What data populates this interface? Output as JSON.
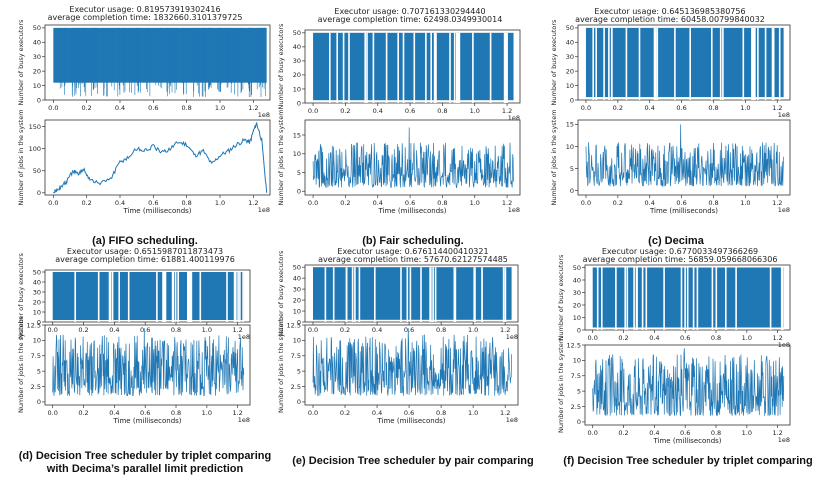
{
  "figure_title": "Scheduler comparison: executor usage and number of jobs in the system",
  "colors": {
    "series": "#1f77b4",
    "axis": "#333333"
  },
  "chart_data": [
    {
      "id": "a",
      "type": "line",
      "title_line1": "Executor usage: 0.819573919302416",
      "title_line2": "average completion time: 1832660.3101379725",
      "caption": "(a) FIFO scheduling.",
      "top": {
        "ylabel": "Number of busy executors",
        "ylim": [
          0,
          52
        ],
        "yticks": [
          0,
          10,
          20,
          30,
          40,
          50
        ],
        "pattern": "fifo"
      },
      "bottom": {
        "ylabel": "Number of jobs in the system",
        "ylim": [
          -5,
          165
        ],
        "yticks": [
          0,
          50,
          100,
          150
        ],
        "pattern": "fifo",
        "x": [
          0,
          0.02,
          0.05,
          0.08,
          0.12,
          0.15,
          0.18,
          0.22,
          0.28,
          0.35,
          0.4,
          0.45,
          0.5,
          0.55,
          0.6,
          0.65,
          0.7,
          0.75,
          0.8,
          0.85,
          0.9,
          0.95,
          1.0,
          1.05,
          1.1,
          1.15,
          1.18,
          1.2,
          1.22,
          1.25,
          1.28
        ],
        "y": [
          0,
          5,
          15,
          25,
          50,
          40,
          55,
          30,
          20,
          35,
          70,
          80,
          100,
          95,
          105,
          90,
          100,
          115,
          110,
          85,
          95,
          65,
          85,
          95,
          110,
          120,
          115,
          140,
          158,
          120,
          0
        ]
      },
      "xlabel": "Time (milliseconds)",
      "xlim": [
        -0.05,
        1.3
      ],
      "xticks": [
        0.0,
        0.2,
        0.4,
        0.6,
        0.8,
        1.0,
        1.2
      ],
      "xscale": "1e8"
    },
    {
      "id": "b",
      "type": "line",
      "title_line1": "Executor usage: 0.707161330294440",
      "title_line2": "average completion time: 62498.0349930014",
      "caption": "(b) Fair scheduling.",
      "top": {
        "ylabel": "Number of busy executors",
        "ylim": [
          0,
          52
        ],
        "yticks": [
          0,
          10,
          20,
          30,
          40,
          50
        ],
        "pattern": "dense"
      },
      "bottom": {
        "ylabel": "Number of jobs in the system",
        "ylim": [
          -1,
          19
        ],
        "yticks": [
          0,
          5,
          10,
          15
        ],
        "pattern": "noise",
        "max": 12,
        "spike": 17
      },
      "xlabel": "Time (milliseconds)",
      "xlim": [
        -0.05,
        1.28
      ],
      "xticks": [
        0.0,
        0.2,
        0.4,
        0.6,
        0.8,
        1.0,
        1.2
      ],
      "xscale": "1e8"
    },
    {
      "id": "c",
      "type": "line",
      "title_line1": "Executor usage: 0.645136985380756",
      "title_line2": "average completion time: 60458.00799840032",
      "caption": "(c) Decima",
      "top": {
        "ylabel": "Number of busy executors",
        "ylim": [
          0,
          52
        ],
        "yticks": [
          0,
          10,
          20,
          30,
          40,
          50
        ],
        "pattern": "dense"
      },
      "bottom": {
        "ylabel": "Number of jobs in the system",
        "ylim": [
          -1,
          16
        ],
        "yticks": [
          0,
          5,
          10,
          15
        ],
        "pattern": "noise",
        "max": 10,
        "spike": 15
      },
      "xlabel": "Time (milliseconds)",
      "xlim": [
        -0.05,
        1.28
      ],
      "xticks": [
        0.0,
        0.2,
        0.4,
        0.6,
        0.8,
        1.0,
        1.2
      ],
      "xscale": "1e8"
    },
    {
      "id": "d",
      "type": "line",
      "title_line1": "Executor usage: 0.6515987011873473",
      "title_line2": "average completion time: 61881.400119976",
      "caption": "(d) Decision Tree scheduler by triplet comparing",
      "caption2": "with Decima’s parallel limit prediction",
      "top": {
        "ylabel": "Number of busy executors",
        "ylim": [
          0,
          52
        ],
        "yticks": [
          0,
          10,
          20,
          30,
          40,
          50
        ],
        "pattern": "dense"
      },
      "bottom": {
        "ylabel": "Number of jobs in the system",
        "ylim": [
          -0.5,
          12.5
        ],
        "yticks": [
          0.0,
          2.5,
          5.0,
          7.5,
          10.0,
          12.5
        ],
        "pattern": "noise",
        "max": 10,
        "spike": 12
      },
      "xlabel": "Time (milliseconds)",
      "xlim": [
        -0.05,
        1.28
      ],
      "xticks": [
        0.0,
        0.2,
        0.4,
        0.6,
        0.8,
        1.0,
        1.2
      ],
      "xscale": "1e8"
    },
    {
      "id": "e",
      "type": "line",
      "title_line1": "Executor usage: 0.676114400410321",
      "title_line2": "average completion time: 57670.62127574485",
      "caption": "(e) Decision Tree scheduler by pair comparing",
      "top": {
        "ylabel": "Number of busy executors",
        "ylim": [
          0,
          52
        ],
        "yticks": [
          0,
          10,
          20,
          30,
          40,
          50
        ],
        "pattern": "dense"
      },
      "bottom": {
        "ylabel": "Number of jobs in the system",
        "ylim": [
          -0.5,
          12.5
        ],
        "yticks": [
          0.0,
          2.5,
          5.0,
          7.5,
          10.0,
          12.5
        ],
        "pattern": "noise",
        "max": 10,
        "spike": 12
      },
      "xlabel": "Time (milliseconds)",
      "xlim": [
        -0.05,
        1.28
      ],
      "xticks": [
        0.0,
        0.2,
        0.4,
        0.6,
        0.8,
        1.0,
        1.2
      ],
      "xscale": "1e8"
    },
    {
      "id": "f",
      "type": "line",
      "title_line1": "Executor usage: 0.6770033497366269",
      "title_line2": "average completion time: 56859.059668066306",
      "caption": "(f) Decision Tree scheduler by triplet comparing",
      "top": {
        "ylabel": "Number of busy executors",
        "ylim": [
          0,
          52
        ],
        "yticks": [
          0,
          10,
          20,
          30,
          40,
          50
        ],
        "pattern": "dense"
      },
      "bottom": {
        "ylabel": "Number of jobs in the system",
        "ylim": [
          -0.5,
          12.5
        ],
        "yticks": [
          0.0,
          2.5,
          5.0,
          7.5,
          10.0,
          12.5
        ],
        "pattern": "noise",
        "max": 10,
        "spike": 12
      },
      "xlabel": "Time (milliseconds)",
      "xlim": [
        -0.05,
        1.28
      ],
      "xticks": [
        0.0,
        0.2,
        0.4,
        0.6,
        0.8,
        1.0,
        1.2
      ],
      "xscale": "1e8"
    }
  ]
}
